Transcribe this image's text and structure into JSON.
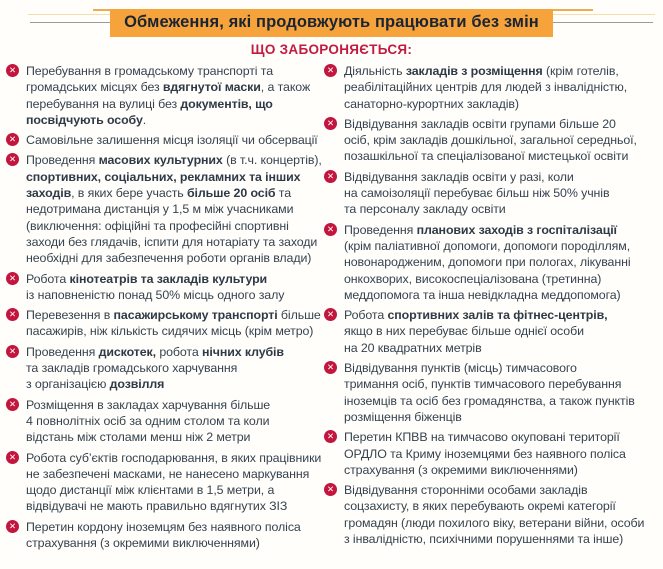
{
  "page": {
    "title": "Обмеження, які продовжують працювати без змін",
    "subtitle": "ЩО ЗАБОРОНЯЄТЬСЯ:"
  },
  "colors": {
    "accent_orange": "#F6A33C",
    "accent_red": "#C2163E",
    "title_text": "#1B2433",
    "body_text": "#36434F",
    "divider_gray": "#9B9B9B"
  },
  "icons": {
    "item_marker": "x-circle-icon",
    "item_marker_glyph": "✕"
  },
  "columns": {
    "left": [
      {
        "segments": [
          {
            "t": "Перебування в громадському транспорті та\nгромадських місцях без ",
            "b": false
          },
          {
            "t": "вдягнутої маски",
            "b": true
          },
          {
            "t": ", а також\nперебування на вулиці без ",
            "b": false
          },
          {
            "t": "документів, що\nпосвідчують особу",
            "b": true
          },
          {
            "t": ".",
            "b": false
          }
        ]
      },
      {
        "segments": [
          {
            "t": "Самовільне залишення місця ізоляції чи обсервації",
            "b": false
          }
        ]
      },
      {
        "segments": [
          {
            "t": "Проведення ",
            "b": false
          },
          {
            "t": "масових культурних",
            "b": true
          },
          {
            "t": " (в т.ч. концертів),\n",
            "b": false
          },
          {
            "t": "спортивних, соціальних, рекламних та інших\nзаходів",
            "b": true
          },
          {
            "t": ", в яких бере участь ",
            "b": false
          },
          {
            "t": "більше 20 осіб",
            "b": true
          },
          {
            "t": " та\nнедотримана дистанція у 1,5 м між учасниками\n(виключення: офіційні та професійні спортивні\nзаходи без глядачів, іспити для нотаріату та заходи\nнеобхідні для забезпечення роботи органів влади)",
            "b": false
          }
        ]
      },
      {
        "segments": [
          {
            "t": "Робота ",
            "b": false
          },
          {
            "t": "кінотеатрів та закладів культури",
            "b": true
          },
          {
            "t": "\nіз наповненістю понад 50% місць одного залу",
            "b": false
          }
        ]
      },
      {
        "segments": [
          {
            "t": "Перевезення в ",
            "b": false
          },
          {
            "t": "пасажирському транспорті",
            "b": true
          },
          {
            "t": " більше\nпасажирів, ніж кількість сидячих місць (крім метро)",
            "b": false
          }
        ]
      },
      {
        "segments": [
          {
            "t": "Проведення ",
            "b": false
          },
          {
            "t": "дискотек,",
            "b": true
          },
          {
            "t": " робота ",
            "b": false
          },
          {
            "t": "нічних клубів",
            "b": true
          },
          {
            "t": "\nта закладів громадського харчування\nз організацією ",
            "b": false
          },
          {
            "t": "дозвілля",
            "b": true
          }
        ]
      },
      {
        "segments": [
          {
            "t": "Розміщення в закладах харчування більше\n4 повнолітніх осіб за одним столом та коли\nвідстань між столами менш ніж 2 метри",
            "b": false
          }
        ]
      },
      {
        "segments": [
          {
            "t": "Робота суб’єктів господарювання, в яких працівники\nне забезпечені масками, не нанесено маркування\nщодо дистанції між клієнтами в 1,5 метри, а\nвідвідувачі не мають правильно вдягнутих ЗІЗ",
            "b": false
          }
        ]
      },
      {
        "segments": [
          {
            "t": "Перетин кордону іноземцям без наявного поліса\nстрахування (з окремими виключеннями)",
            "b": false
          }
        ]
      }
    ],
    "right": [
      {
        "segments": [
          {
            "t": "Діяльність ",
            "b": false
          },
          {
            "t": "закладів з розміщення",
            "b": true
          },
          {
            "t": " (крім готелів,\nреабілітаційних центрів для людей з інвалідністю,\nсанаторно-курортних закладів)",
            "b": false
          }
        ]
      },
      {
        "segments": [
          {
            "t": "Відвідування закладів освіти групами більше 20\nосіб, крім закладів дошкільної, загальної середньої,\nпозашкільної та спеціалізованої мистецької освіти",
            "b": false
          }
        ]
      },
      {
        "segments": [
          {
            "t": "Відвідування закладів освіти у разі, коли\nна самоізоляції перебуває більш ніж 50% учнів\nта персоналу закладу освіти",
            "b": false
          }
        ]
      },
      {
        "segments": [
          {
            "t": "Проведення ",
            "b": false
          },
          {
            "t": "планових заходів з госпіталізації",
            "b": true
          },
          {
            "t": "\n(крім паліативної допомоги, допомоги породіллям,\nновонародженим, допомоги при пологах, лікуванні\nонкохворих, високоспеціалізована (третинна)\nмеддопомога та інша невідкладна меддопомога)",
            "b": false
          }
        ]
      },
      {
        "segments": [
          {
            "t": "Робота ",
            "b": false
          },
          {
            "t": "спортивних залів та фітнес-центрів,",
            "b": true
          },
          {
            "t": "\nякщо в них перебуває більше однієї особи\nна 20 квадратних метрів",
            "b": false
          }
        ]
      },
      {
        "segments": [
          {
            "t": "Відвідування пунктів (місць) тимчасового\nтримання осіб, пунктів тимчасового перебування\nіноземців та осіб без громадянства, а також пунктів\nрозміщення біженців",
            "b": false
          }
        ]
      },
      {
        "segments": [
          {
            "t": "Перетин КПВВ на тимчасово окуповані території\nОРДЛО та Криму іноземцями без наявного поліса\nстрахування (з окремими виключеннями)",
            "b": false
          }
        ]
      },
      {
        "segments": [
          {
            "t": "Відвідування сторонніми особами закладів\nсоцзахисту, в яких перебувають окремі категорії\nгромадян (люди похилого віку, ветерани війни, особи\nз інвалідністю, психічними порушеннями та інше)",
            "b": false
          }
        ]
      }
    ]
  }
}
